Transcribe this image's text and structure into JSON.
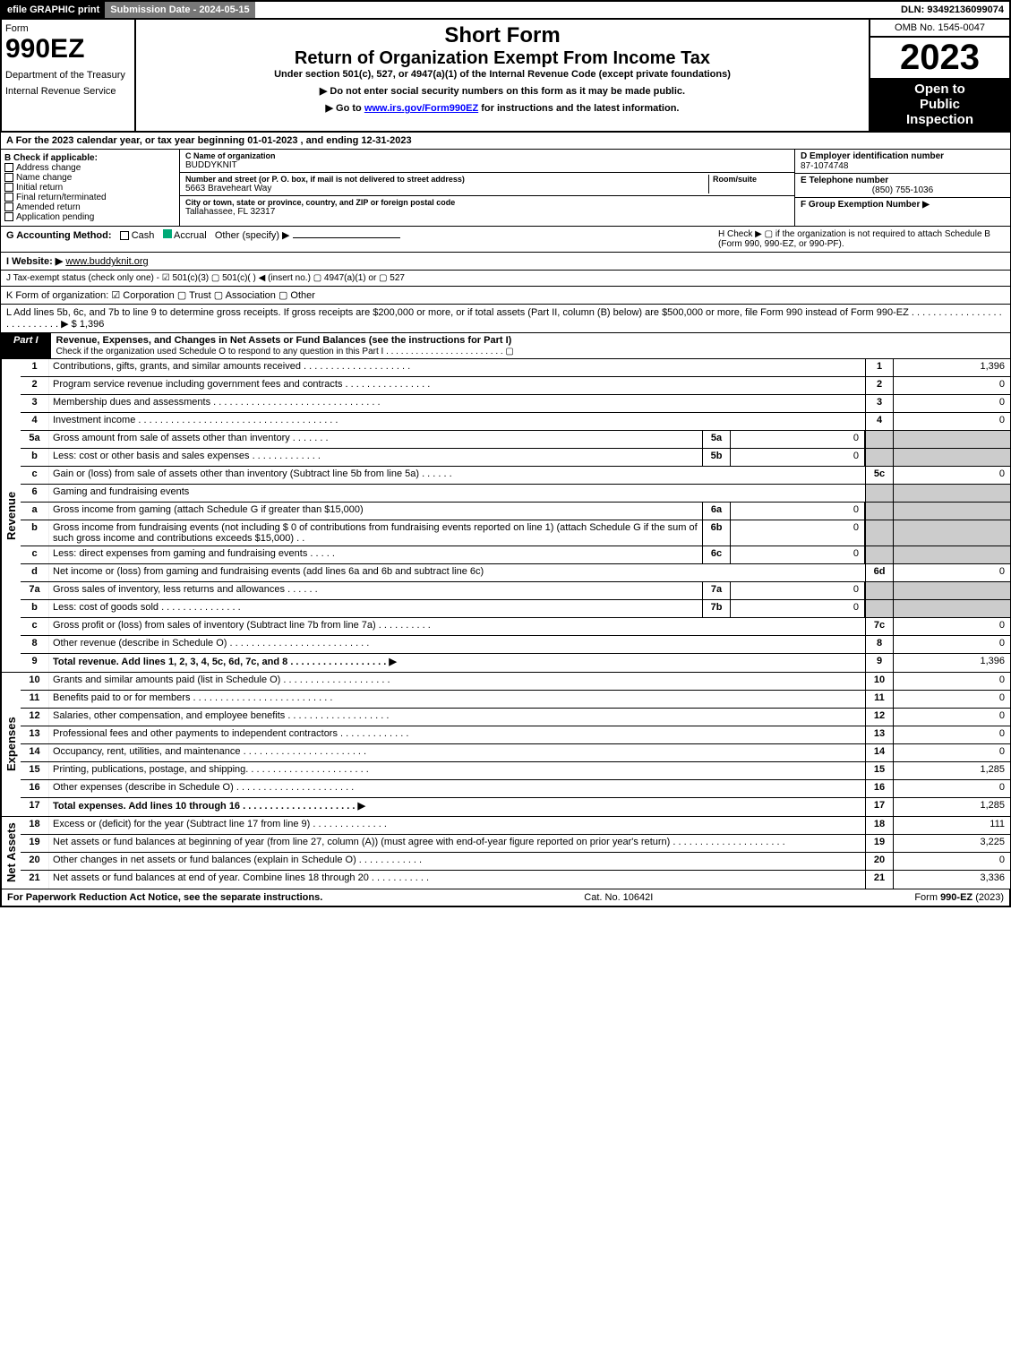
{
  "topbar": {
    "efile": "efile GRAPHIC print",
    "submission": "Submission Date - 2024-05-15",
    "dln": "DLN: 93492136099074"
  },
  "header": {
    "form_word": "Form",
    "form_number": "990EZ",
    "dept1": "Department of the Treasury",
    "dept2": "Internal Revenue Service",
    "short_form": "Short Form",
    "title": "Return of Organization Exempt From Income Tax",
    "subtitle": "Under section 501(c), 527, or 4947(a)(1) of the Internal Revenue Code (except private foundations)",
    "warn": "▶ Do not enter social security numbers on this form as it may be made public.",
    "goto_pre": "▶ Go to ",
    "goto_link": "www.irs.gov/Form990EZ",
    "goto_post": " for instructions and the latest information.",
    "omb": "OMB No. 1545-0047",
    "year": "2023",
    "inspection1": "Open to",
    "inspection2": "Public",
    "inspection3": "Inspection"
  },
  "A": {
    "text": "A  For the 2023 calendar year, or tax year beginning 01-01-2023 , and ending 12-31-2023"
  },
  "B": {
    "head": "B  Check if applicable:",
    "opts": [
      "Address change",
      "Name change",
      "Initial return",
      "Final return/terminated",
      "Amended return",
      "Application pending"
    ]
  },
  "C": {
    "name_lbl": "C Name of organization",
    "name": "BUDDYKNIT",
    "street_lbl": "Number and street (or P. O. box, if mail is not delivered to street address)",
    "room_lbl": "Room/suite",
    "street": "5663 Braveheart Way",
    "city_lbl": "City or town, state or province, country, and ZIP or foreign postal code",
    "city": "Tallahassee, FL  32317"
  },
  "D": {
    "lbl": "D Employer identification number",
    "val": "87-1074748"
  },
  "E": {
    "lbl": "E Telephone number",
    "val": "(850) 755-1036"
  },
  "F": {
    "lbl": "F Group Exemption Number  ▶"
  },
  "G": {
    "pre": "G Accounting Method:",
    "cash": "Cash",
    "accrual": "Accrual",
    "other": "Other (specify) ▶"
  },
  "H": {
    "txt": "H  Check ▶  ▢  if the organization is not required to attach Schedule B (Form 990, 990-EZ, or 990-PF)."
  },
  "I": {
    "pre": "I Website: ▶",
    "url": "www.buddyknit.org"
  },
  "J": {
    "txt": "J Tax-exempt status (check only one) -  ☑ 501(c)(3)  ▢ 501(c)(  ) ◀ (insert no.)  ▢ 4947(a)(1) or  ▢ 527"
  },
  "K": {
    "txt": "K Form of organization:   ☑ Corporation   ▢ Trust   ▢ Association   ▢ Other"
  },
  "L": {
    "txt": "L Add lines 5b, 6c, and 7b to line 9 to determine gross receipts. If gross receipts are $200,000 or more, or if total assets (Part II, column (B) below) are $500,000 or more, file Form 990 instead of Form 990-EZ  .  .  .  .  .  .  .  .  .  .  .  .  .  .  .  .  .  .  .  .  .  .  .  .  .  .  .  ▶ $ ",
    "val": "1,396"
  },
  "part1": {
    "tag": "Part I",
    "title": "Revenue, Expenses, and Changes in Net Assets or Fund Balances (see the instructions for Part I)",
    "check": "Check if the organization used Schedule O to respond to any question in this Part I  .  .  .  .  .  .  .  .  .  .  .  .  .  .  .  .  .  .  .  .  .  .  .  .  ▢"
  },
  "vtabs": {
    "rev": "Revenue",
    "exp": "Expenses",
    "net": "Net Assets"
  },
  "revlines": [
    {
      "no": "1",
      "txt": "Contributions, gifts, grants, and similar amounts received  .  .  .  .  .  .  .  .  .  .  .  .  .  .  .  .  .  .  .  .",
      "rno": "1",
      "rval": "1,396"
    },
    {
      "no": "2",
      "txt": "Program service revenue including government fees and contracts  .  .  .  .  .  .  .  .  .  .  .  .  .  .  .  .",
      "rno": "2",
      "rval": "0"
    },
    {
      "no": "3",
      "txt": "Membership dues and assessments  .  .  .  .  .  .  .  .  .  .  .  .  .  .  .  .  .  .  .  .  .  .  .  .  .  .  .  .  .  .  .",
      "rno": "3",
      "rval": "0"
    },
    {
      "no": "4",
      "txt": "Investment income  .  .  .  .  .  .  .  .  .  .  .  .  .  .  .  .  .  .  .  .  .  .  .  .  .  .  .  .  .  .  .  .  .  .  .  .  .",
      "rno": "4",
      "rval": "0"
    },
    {
      "no": "5a",
      "txt": "Gross amount from sale of assets other than inventory  .  .  .  .  .  .  .",
      "mno": "5a",
      "mval": "0",
      "rno": "",
      "rval": "",
      "shade": true
    },
    {
      "no": "b",
      "txt": "Less: cost or other basis and sales expenses  .  .  .  .  .  .  .  .  .  .  .  .  .",
      "mno": "5b",
      "mval": "0",
      "rno": "",
      "rval": "",
      "shade": true
    },
    {
      "no": "c",
      "txt": "Gain or (loss) from sale of assets other than inventory (Subtract line 5b from line 5a)  .  .  .  .  .  .",
      "rno": "5c",
      "rval": "0"
    },
    {
      "no": "6",
      "txt": "Gaming and fundraising events",
      "rno": "",
      "rval": "",
      "shade": true
    },
    {
      "no": "a",
      "txt": "Gross income from gaming (attach Schedule G if greater than $15,000)",
      "mno": "6a",
      "mval": "0",
      "rno": "",
      "rval": "",
      "shade": true
    },
    {
      "no": "b",
      "txt": "Gross income from fundraising events (not including $  0                          of contributions from fundraising events reported on line 1) (attach Schedule G if the sum of such gross income and contributions exceeds $15,000)    .   .",
      "mno": "6b",
      "mval": "0",
      "rno": "",
      "rval": "",
      "shade": true
    },
    {
      "no": "c",
      "txt": "Less: direct expenses from gaming and fundraising events  .  .  .  .  .",
      "mno": "6c",
      "mval": "0",
      "rno": "",
      "rval": "",
      "shade": true
    },
    {
      "no": "d",
      "txt": "Net income or (loss) from gaming and fundraising events (add lines 6a and 6b and subtract line 6c)",
      "rno": "6d",
      "rval": "0"
    },
    {
      "no": "7a",
      "txt": "Gross sales of inventory, less returns and allowances  .  .  .  .  .  .",
      "mno": "7a",
      "mval": "0",
      "rno": "",
      "rval": "",
      "shade": true
    },
    {
      "no": "b",
      "txt": "Less: cost of goods sold                   .  .  .  .  .  .  .  .  .  .  .  .  .  .  .",
      "mno": "7b",
      "mval": "0",
      "rno": "",
      "rval": "",
      "shade": true
    },
    {
      "no": "c",
      "txt": "Gross profit or (loss) from sales of inventory (Subtract line 7b from line 7a)  .  .  .  .  .  .  .  .  .  .",
      "rno": "7c",
      "rval": "0"
    },
    {
      "no": "8",
      "txt": "Other revenue (describe in Schedule O)  .  .  .  .  .  .  .  .  .  .  .  .  .  .  .  .  .  .  .  .  .  .  .  .  .  .",
      "rno": "8",
      "rval": "0"
    },
    {
      "no": "9",
      "txt": "Total revenue. Add lines 1, 2, 3, 4, 5c, 6d, 7c, and 8   .  .  .  .  .  .  .  .  .  .  .  .  .  .  .  .  .  .  ▶",
      "rno": "9",
      "rval": "1,396",
      "bold": true
    }
  ],
  "explines": [
    {
      "no": "10",
      "txt": "Grants and similar amounts paid (list in Schedule O)  .  .  .  .  .  .  .  .  .  .  .  .  .  .  .  .  .  .  .  .",
      "rno": "10",
      "rval": "0"
    },
    {
      "no": "11",
      "txt": "Benefits paid to or for members     .  .  .  .  .  .  .  .  .  .  .  .  .  .  .  .  .  .  .  .  .  .  .  .  .  .",
      "rno": "11",
      "rval": "0"
    },
    {
      "no": "12",
      "txt": "Salaries, other compensation, and employee benefits  .  .  .  .  .  .  .  .  .  .  .  .  .  .  .  .  .  .  .",
      "rno": "12",
      "rval": "0"
    },
    {
      "no": "13",
      "txt": "Professional fees and other payments to independent contractors  .  .  .  .  .  .  .  .  .  .  .  .  .",
      "rno": "13",
      "rval": "0"
    },
    {
      "no": "14",
      "txt": "Occupancy, rent, utilities, and maintenance .  .  .  .  .  .  .  .  .  .  .  .  .  .  .  .  .  .  .  .  .  .  .",
      "rno": "14",
      "rval": "0"
    },
    {
      "no": "15",
      "txt": "Printing, publications, postage, and shipping.  .  .  .  .  .  .  .  .  .  .  .  .  .  .  .  .  .  .  .  .  .  .",
      "rno": "15",
      "rval": "1,285"
    },
    {
      "no": "16",
      "txt": "Other expenses (describe in Schedule O)     .  .  .  .  .  .  .  .  .  .  .  .  .  .  .  .  .  .  .  .  .  .",
      "rno": "16",
      "rval": "0"
    },
    {
      "no": "17",
      "txt": "Total expenses. Add lines 10 through 16      .  .  .  .  .  .  .  .  .  .  .  .  .  .  .  .  .  .  .  .  .  ▶",
      "rno": "17",
      "rval": "1,285",
      "bold": true
    }
  ],
  "netlines": [
    {
      "no": "18",
      "txt": "Excess or (deficit) for the year (Subtract line 17 from line 9)        .  .  .  .  .  .  .  .  .  .  .  .  .  .",
      "rno": "18",
      "rval": "111"
    },
    {
      "no": "19",
      "txt": "Net assets or fund balances at beginning of year (from line 27, column (A)) (must agree with end-of-year figure reported on prior year's return) .  .  .  .  .  .  .  .  .  .  .  .  .  .  .  .  .  .  .  .  .",
      "rno": "19",
      "rval": "3,225"
    },
    {
      "no": "20",
      "txt": "Other changes in net assets or fund balances (explain in Schedule O) .  .  .  .  .  .  .  .  .  .  .  .",
      "rno": "20",
      "rval": "0"
    },
    {
      "no": "21",
      "txt": "Net assets or fund balances at end of year. Combine lines 18 through 20 .  .  .  .  .  .  .  .  .  .  .",
      "rno": "21",
      "rval": "3,336"
    }
  ],
  "footer": {
    "left": "For Paperwork Reduction Act Notice, see the separate instructions.",
    "mid": "Cat. No. 10642I",
    "right_pre": "Form ",
    "right_bold": "990-EZ",
    "right_post": " (2023)"
  }
}
